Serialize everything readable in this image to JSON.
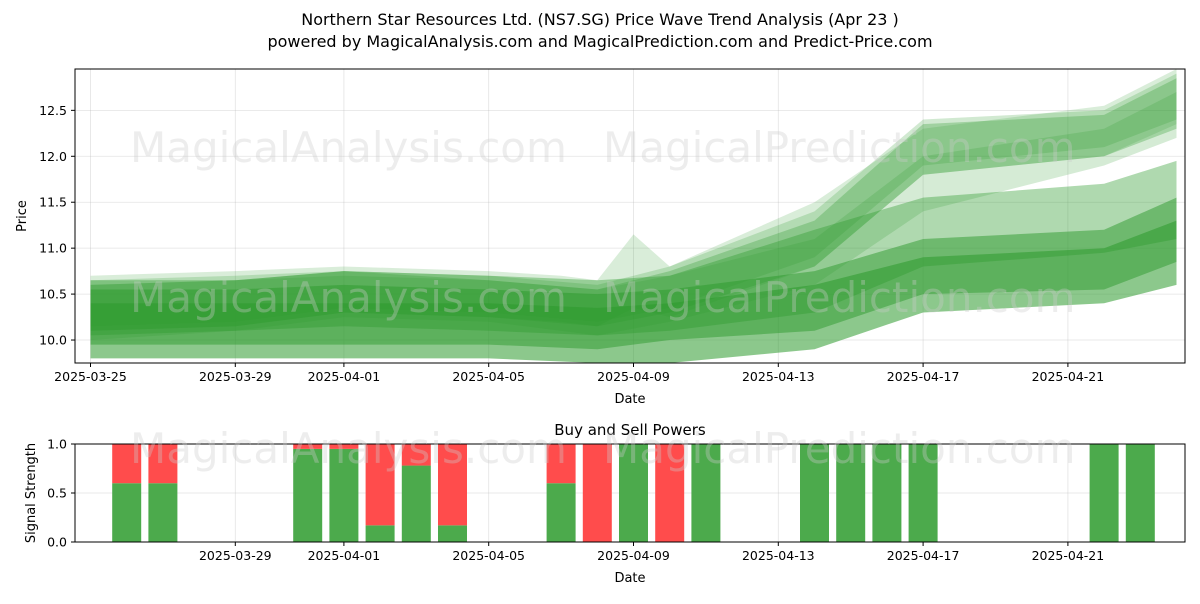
{
  "title_line1": "Northern Star Resources Ltd. (NS7.SG) Price Wave Trend Analysis (Apr 23 )",
  "title_line2": "powered by MagicalAnalysis.com and MagicalPrediction.com and Predict-Price.com",
  "watermarks": [
    "MagicalAnalysis.com",
    "MagicalPrediction.com"
  ],
  "colors": {
    "buy": "#4caa4c",
    "sell": "#ff4c4c",
    "band": "#2e9a2e"
  },
  "chart_data": [
    {
      "type": "area",
      "xlabel": "Date",
      "ylabel": "Price",
      "x_start": "2025-03-25",
      "xlim": [
        "2025-03-25",
        "2025-04-23"
      ],
      "ylim": [
        9.75,
        12.95
      ],
      "xticks": [
        "2025-03-25",
        "2025-03-29",
        "2025-04-01",
        "2025-04-05",
        "2025-04-09",
        "2025-04-13",
        "2025-04-17",
        "2025-04-21"
      ],
      "yticks": [
        "10.0",
        "10.5",
        "11.0",
        "11.5",
        "12.0",
        "12.5"
      ],
      "grid": true,
      "series": [
        {
          "dates": [
            "2025-03-25",
            "2025-03-29",
            "2025-04-01",
            "2025-04-05",
            "2025-04-08",
            "2025-04-10",
            "2025-04-14",
            "2025-04-17",
            "2025-04-22",
            "2025-04-24"
          ],
          "lower": [
            9.8,
            9.8,
            9.8,
            9.8,
            9.75,
            9.75,
            9.9,
            10.3,
            10.4,
            10.6
          ],
          "upper": [
            10.4,
            10.4,
            10.4,
            10.4,
            10.35,
            10.4,
            10.6,
            10.9,
            11.0,
            11.3
          ],
          "opacity": 0.55
        },
        {
          "dates": [
            "2025-03-25",
            "2025-03-29",
            "2025-04-01",
            "2025-04-05",
            "2025-04-08",
            "2025-04-10",
            "2025-04-14",
            "2025-04-17",
            "2025-04-22",
            "2025-04-24"
          ],
          "lower": [
            9.95,
            9.95,
            9.95,
            9.95,
            9.9,
            10.0,
            10.1,
            10.5,
            10.55,
            10.85
          ],
          "upper": [
            10.55,
            10.55,
            10.6,
            10.55,
            10.5,
            10.55,
            10.75,
            11.1,
            11.2,
            11.55
          ],
          "opacity": 0.5
        },
        {
          "dates": [
            "2025-03-25",
            "2025-03-29",
            "2025-04-01",
            "2025-04-05",
            "2025-04-08",
            "2025-04-10",
            "2025-04-14",
            "2025-04-17",
            "2025-04-22",
            "2025-04-24"
          ],
          "lower": [
            10.05,
            10.1,
            10.15,
            10.1,
            10.05,
            10.1,
            10.3,
            10.8,
            10.95,
            11.1
          ],
          "upper": [
            10.65,
            10.65,
            10.75,
            10.7,
            10.65,
            10.7,
            11.2,
            11.55,
            11.7,
            11.95
          ],
          "opacity": 0.38
        },
        {
          "dates": [
            "2025-03-25",
            "2025-03-29",
            "2025-04-01",
            "2025-04-05",
            "2025-04-08",
            "2025-04-10",
            "2025-04-14",
            "2025-04-17",
            "2025-04-22",
            "2025-04-24"
          ],
          "lower": [
            10.1,
            10.15,
            10.3,
            10.25,
            10.15,
            10.3,
            10.8,
            11.8,
            12.0,
            12.3
          ],
          "upper": [
            10.6,
            10.65,
            10.75,
            10.65,
            10.55,
            10.75,
            11.3,
            12.35,
            12.45,
            12.85
          ],
          "opacity": 0.3
        },
        {
          "dates": [
            "2025-03-25",
            "2025-03-29",
            "2025-04-01",
            "2025-04-05",
            "2025-04-08",
            "2025-04-10",
            "2025-04-14",
            "2025-04-17",
            "2025-04-22",
            "2025-04-24"
          ],
          "lower": [
            10.15,
            10.2,
            10.35,
            10.3,
            10.2,
            10.35,
            10.9,
            11.9,
            12.1,
            12.4
          ],
          "upper": [
            10.65,
            10.7,
            10.75,
            10.7,
            10.6,
            10.8,
            11.4,
            12.4,
            12.5,
            12.9
          ],
          "opacity": 0.22
        },
        {
          "dates": [
            "2025-03-25",
            "2025-03-29",
            "2025-04-01",
            "2025-04-05",
            "2025-04-07",
            "2025-04-08",
            "2025-04-09",
            "2025-04-10",
            "2025-04-14",
            "2025-04-17",
            "2025-04-22",
            "2025-04-24"
          ],
          "lower": [
            10.1,
            10.15,
            10.3,
            10.25,
            10.2,
            10.15,
            10.35,
            10.25,
            10.8,
            11.8,
            12.0,
            12.35
          ],
          "upper": [
            10.7,
            10.75,
            10.8,
            10.75,
            10.7,
            10.65,
            11.15,
            10.8,
            11.5,
            12.3,
            12.55,
            12.95
          ],
          "opacity": 0.18
        },
        {
          "dates": [
            "2025-03-25",
            "2025-03-29",
            "2025-04-01",
            "2025-04-05",
            "2025-04-08",
            "2025-04-10",
            "2025-04-14",
            "2025-04-17",
            "2025-04-22",
            "2025-04-24"
          ],
          "lower": [
            10.0,
            10.1,
            10.25,
            10.2,
            10.05,
            10.2,
            10.6,
            11.4,
            11.9,
            12.2
          ],
          "upper": [
            10.6,
            10.65,
            10.7,
            10.65,
            10.55,
            10.7,
            11.1,
            12.0,
            12.3,
            12.7
          ],
          "opacity": 0.2
        }
      ]
    },
    {
      "type": "bar",
      "title": "Buy and Sell Powers",
      "xlabel": "Date",
      "ylabel": "Signal Strength",
      "xlim": [
        "2025-03-25",
        "2025-04-23"
      ],
      "ylim": [
        0,
        1
      ],
      "xticks": [
        "2025-03-29",
        "2025-04-01",
        "2025-04-05",
        "2025-04-09",
        "2025-04-13",
        "2025-04-17",
        "2025-04-21"
      ],
      "yticks": [
        "0.0",
        "0.5",
        "1.0"
      ],
      "bars": [
        {
          "date": "2025-03-26",
          "buy": 0.6,
          "sell": 0.4
        },
        {
          "date": "2025-03-27",
          "buy": 0.6,
          "sell": 0.4
        },
        {
          "date": "2025-03-31",
          "buy": 0.95,
          "sell": 0.05
        },
        {
          "date": "2025-04-01",
          "buy": 0.95,
          "sell": 0.05
        },
        {
          "date": "2025-04-02",
          "buy": 0.17,
          "sell": 0.83
        },
        {
          "date": "2025-04-03",
          "buy": 0.78,
          "sell": 0.22
        },
        {
          "date": "2025-04-04",
          "buy": 0.17,
          "sell": 0.83
        },
        {
          "date": "2025-04-07",
          "buy": 0.6,
          "sell": 0.4
        },
        {
          "date": "2025-04-08",
          "buy": 0.0,
          "sell": 1.0
        },
        {
          "date": "2025-04-09",
          "buy": 1.0,
          "sell": 0.0
        },
        {
          "date": "2025-04-10",
          "buy": 0.0,
          "sell": 1.0
        },
        {
          "date": "2025-04-11",
          "buy": 1.0,
          "sell": 0.0
        },
        {
          "date": "2025-04-14",
          "buy": 1.0,
          "sell": 0.0
        },
        {
          "date": "2025-04-15",
          "buy": 1.0,
          "sell": 0.0
        },
        {
          "date": "2025-04-16",
          "buy": 1.0,
          "sell": 0.0
        },
        {
          "date": "2025-04-17",
          "buy": 1.0,
          "sell": 0.0
        },
        {
          "date": "2025-04-22",
          "buy": 1.0,
          "sell": 0.0
        },
        {
          "date": "2025-04-23",
          "buy": 1.0,
          "sell": 0.0
        }
      ]
    }
  ]
}
